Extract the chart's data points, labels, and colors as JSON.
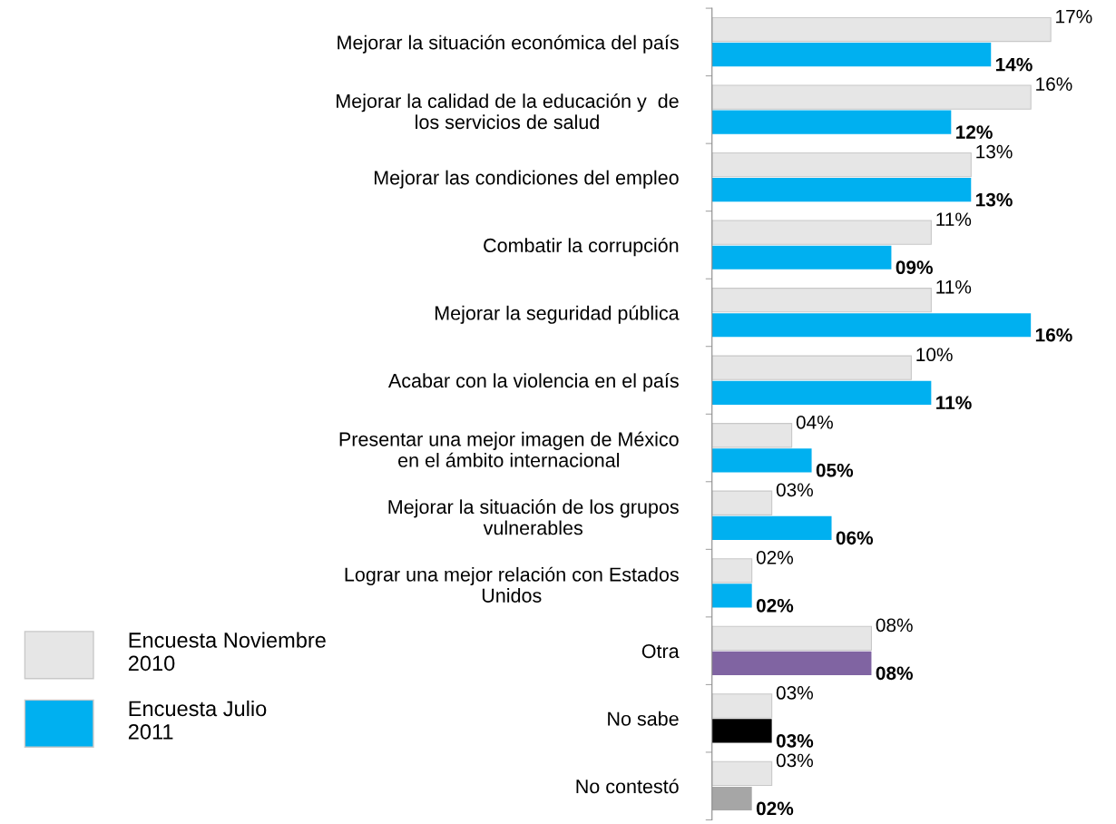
{
  "chart_data": {
    "type": "bar",
    "orientation": "horizontal",
    "categories": [
      "Mejorar la situación económica del país",
      "Mejorar la calidad de la educación y  de\nlos servicios de salud",
      "Mejorar las condiciones del empleo",
      "Combatir la corrupción",
      "Mejorar la seguridad pública",
      "Acabar con la violencia en el país",
      "Presentar una mejor imagen de México\nen el ámbito internacional",
      "Mejorar la situación de los grupos\nvulnerables",
      "Lograr una mejor relación con Estados\nUnidos",
      "Otra",
      "No sabe",
      "No contestó"
    ],
    "series": [
      {
        "name": "Encuesta Noviembre\n2010",
        "color": "#e6e6e6",
        "values": [
          17,
          16,
          13,
          11,
          11,
          10,
          4,
          3,
          2,
          8,
          3,
          3
        ],
        "value_labels": [
          "17%",
          "16%",
          "13%",
          "11%",
          "11%",
          "10%",
          "04%",
          "03%",
          "02%",
          "08%",
          "03%",
          "03%"
        ]
      },
      {
        "name": "Encuesta Julio\n2011",
        "color": "#00b0f0",
        "colors": [
          "#00b0f0",
          "#00b0f0",
          "#00b0f0",
          "#00b0f0",
          "#00b0f0",
          "#00b0f0",
          "#00b0f0",
          "#00b0f0",
          "#00b0f0",
          "#8064a2",
          "#000000",
          "#a6a6a6"
        ],
        "values": [
          14,
          12,
          13,
          9,
          16,
          11,
          5,
          6,
          2,
          8,
          3,
          2
        ],
        "value_labels": [
          "14%",
          "12%",
          "13%",
          "09%",
          "16%",
          "11%",
          "05%",
          "06%",
          "02%",
          "08%",
          "03%",
          "02%"
        ]
      }
    ],
    "legend": "bottom left",
    "grid": false
  }
}
